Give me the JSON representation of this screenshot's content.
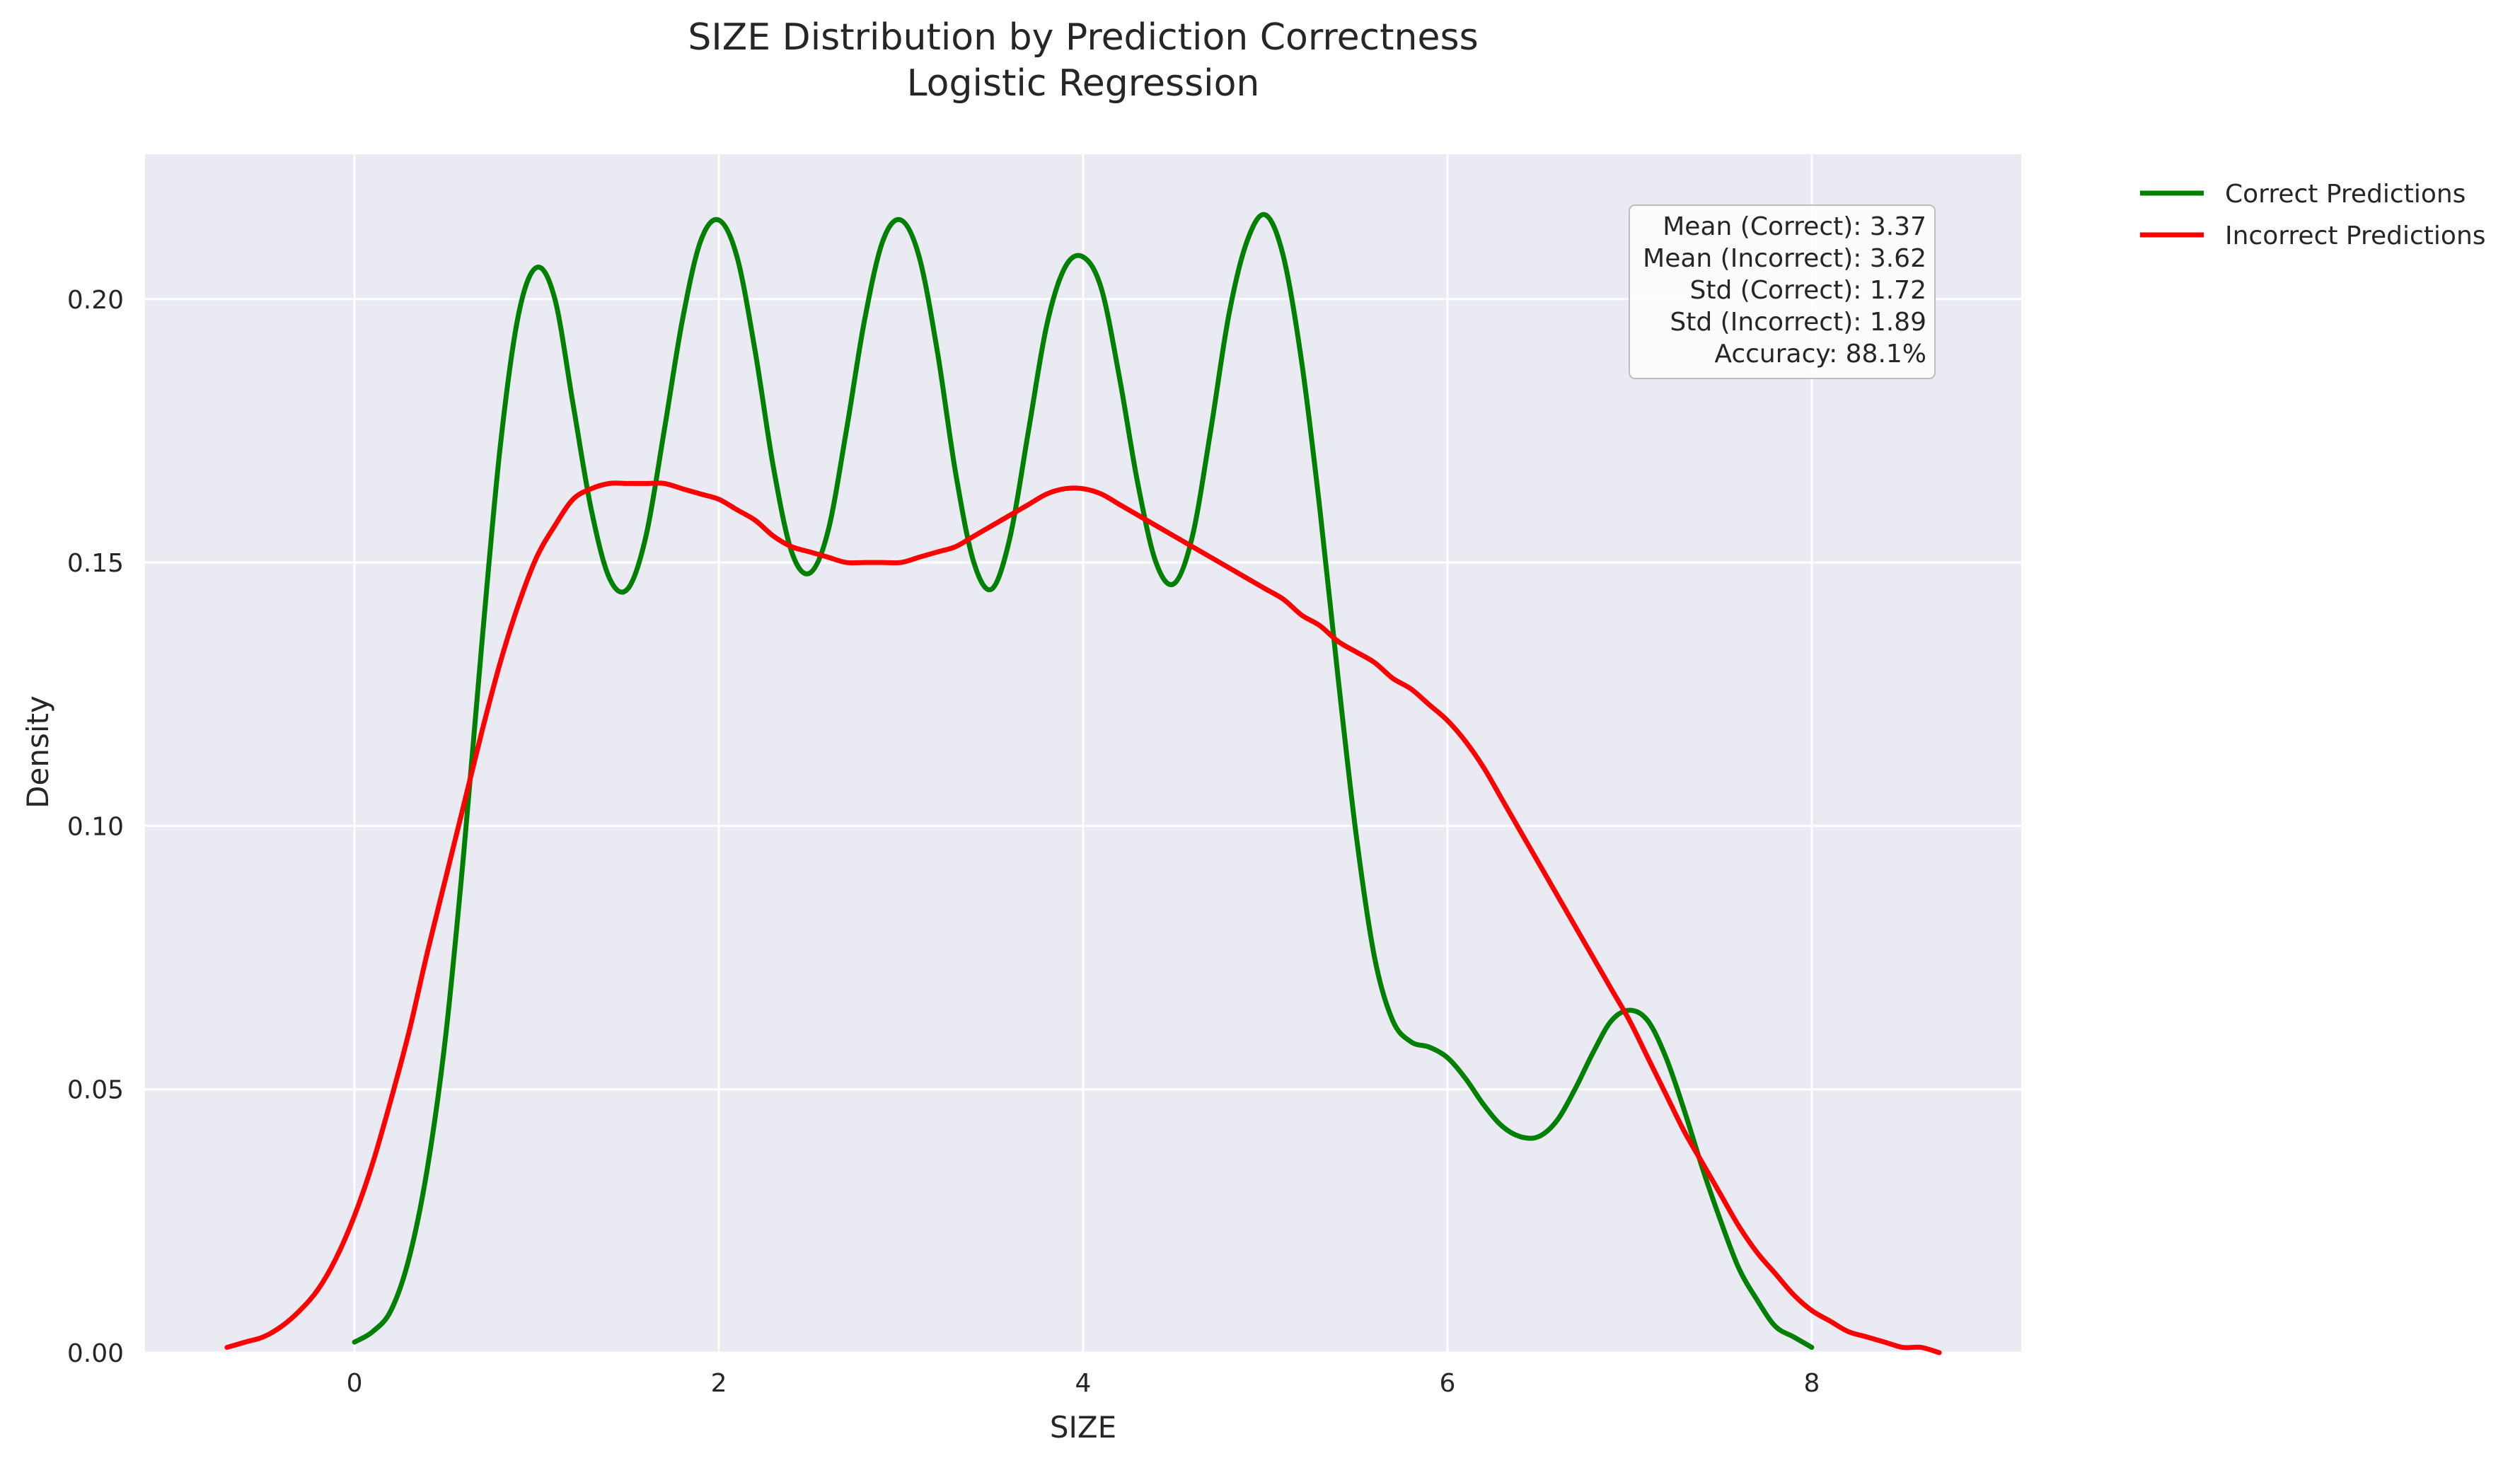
{
  "chart_data": {
    "type": "line",
    "title": "SIZE Distribution by Prediction Correctness",
    "subtitle": "Logistic Regression",
    "xlabel": "SIZE",
    "ylabel": "Density",
    "xlim": [
      -1.15,
      9.15
    ],
    "ylim": [
      0,
      0.2275
    ],
    "x_ticks": [
      0,
      2,
      4,
      6,
      8
    ],
    "x_tick_labels": [
      "0",
      "2",
      "4",
      "6",
      "8"
    ],
    "y_ticks": [
      0.0,
      0.05,
      0.1,
      0.15,
      0.2
    ],
    "y_tick_labels": [
      "0.00",
      "0.05",
      "0.10",
      "0.15",
      "0.20"
    ],
    "grid": true,
    "legend_placement": "outside-top-right",
    "series": [
      {
        "name": "Correct Predictions",
        "color": "#008000",
        "points": [
          [
            0.0,
            0.002
          ],
          [
            0.1,
            0.004
          ],
          [
            0.2,
            0.008
          ],
          [
            0.3,
            0.018
          ],
          [
            0.4,
            0.035
          ],
          [
            0.5,
            0.06
          ],
          [
            0.6,
            0.095
          ],
          [
            0.7,
            0.135
          ],
          [
            0.8,
            0.172
          ],
          [
            0.9,
            0.197
          ],
          [
            1.0,
            0.206
          ],
          [
            1.1,
            0.2
          ],
          [
            1.2,
            0.18
          ],
          [
            1.3,
            0.16
          ],
          [
            1.4,
            0.147
          ],
          [
            1.5,
            0.145
          ],
          [
            1.6,
            0.155
          ],
          [
            1.7,
            0.175
          ],
          [
            1.8,
            0.196
          ],
          [
            1.9,
            0.211
          ],
          [
            2.0,
            0.215
          ],
          [
            2.1,
            0.208
          ],
          [
            2.2,
            0.19
          ],
          [
            2.3,
            0.168
          ],
          [
            2.4,
            0.152
          ],
          [
            2.5,
            0.148
          ],
          [
            2.6,
            0.156
          ],
          [
            2.7,
            0.175
          ],
          [
            2.8,
            0.196
          ],
          [
            2.9,
            0.211
          ],
          [
            3.0,
            0.215
          ],
          [
            3.1,
            0.208
          ],
          [
            3.2,
            0.19
          ],
          [
            3.3,
            0.167
          ],
          [
            3.4,
            0.15
          ],
          [
            3.5,
            0.145
          ],
          [
            3.6,
            0.155
          ],
          [
            3.7,
            0.175
          ],
          [
            3.8,
            0.195
          ],
          [
            3.9,
            0.206
          ],
          [
            4.0,
            0.208
          ],
          [
            4.1,
            0.202
          ],
          [
            4.2,
            0.185
          ],
          [
            4.3,
            0.165
          ],
          [
            4.4,
            0.15
          ],
          [
            4.5,
            0.146
          ],
          [
            4.6,
            0.155
          ],
          [
            4.7,
            0.175
          ],
          [
            4.8,
            0.197
          ],
          [
            4.9,
            0.211
          ],
          [
            5.0,
            0.216
          ],
          [
            5.1,
            0.208
          ],
          [
            5.2,
            0.188
          ],
          [
            5.3,
            0.16
          ],
          [
            5.4,
            0.128
          ],
          [
            5.5,
            0.098
          ],
          [
            5.6,
            0.075
          ],
          [
            5.7,
            0.063
          ],
          [
            5.8,
            0.059
          ],
          [
            5.9,
            0.058
          ],
          [
            6.0,
            0.056
          ],
          [
            6.1,
            0.052
          ],
          [
            6.2,
            0.047
          ],
          [
            6.3,
            0.043
          ],
          [
            6.4,
            0.041
          ],
          [
            6.5,
            0.041
          ],
          [
            6.6,
            0.044
          ],
          [
            6.7,
            0.05
          ],
          [
            6.8,
            0.057
          ],
          [
            6.9,
            0.063
          ],
          [
            7.0,
            0.065
          ],
          [
            7.1,
            0.063
          ],
          [
            7.2,
            0.056
          ],
          [
            7.3,
            0.046
          ],
          [
            7.4,
            0.035
          ],
          [
            7.5,
            0.025
          ],
          [
            7.6,
            0.016
          ],
          [
            7.7,
            0.01
          ],
          [
            7.8,
            0.005
          ],
          [
            7.9,
            0.003
          ],
          [
            8.0,
            0.001
          ]
        ]
      },
      {
        "name": "Incorrect Predictions",
        "color": "#ff0000",
        "points": [
          [
            -0.7,
            0.001
          ],
          [
            -0.6,
            0.002
          ],
          [
            -0.5,
            0.003
          ],
          [
            -0.4,
            0.005
          ],
          [
            -0.3,
            0.008
          ],
          [
            -0.2,
            0.012
          ],
          [
            -0.1,
            0.018
          ],
          [
            0.0,
            0.026
          ],
          [
            0.1,
            0.036
          ],
          [
            0.2,
            0.048
          ],
          [
            0.3,
            0.061
          ],
          [
            0.4,
            0.076
          ],
          [
            0.5,
            0.09
          ],
          [
            0.6,
            0.104
          ],
          [
            0.7,
            0.118
          ],
          [
            0.8,
            0.131
          ],
          [
            0.9,
            0.142
          ],
          [
            1.0,
            0.151
          ],
          [
            1.1,
            0.157
          ],
          [
            1.2,
            0.162
          ],
          [
            1.3,
            0.164
          ],
          [
            1.4,
            0.165
          ],
          [
            1.5,
            0.165
          ],
          [
            1.6,
            0.165
          ],
          [
            1.7,
            0.165
          ],
          [
            1.8,
            0.164
          ],
          [
            1.9,
            0.163
          ],
          [
            2.0,
            0.162
          ],
          [
            2.1,
            0.16
          ],
          [
            2.2,
            0.158
          ],
          [
            2.3,
            0.155
          ],
          [
            2.4,
            0.153
          ],
          [
            2.5,
            0.152
          ],
          [
            2.6,
            0.151
          ],
          [
            2.7,
            0.15
          ],
          [
            2.8,
            0.15
          ],
          [
            2.9,
            0.15
          ],
          [
            3.0,
            0.15
          ],
          [
            3.1,
            0.151
          ],
          [
            3.2,
            0.152
          ],
          [
            3.3,
            0.153
          ],
          [
            3.4,
            0.155
          ],
          [
            3.5,
            0.157
          ],
          [
            3.6,
            0.159
          ],
          [
            3.7,
            0.161
          ],
          [
            3.8,
            0.163
          ],
          [
            3.9,
            0.164
          ],
          [
            4.0,
            0.164
          ],
          [
            4.1,
            0.163
          ],
          [
            4.2,
            0.161
          ],
          [
            4.3,
            0.159
          ],
          [
            4.4,
            0.157
          ],
          [
            4.5,
            0.155
          ],
          [
            4.6,
            0.153
          ],
          [
            4.7,
            0.151
          ],
          [
            4.8,
            0.149
          ],
          [
            4.9,
            0.147
          ],
          [
            5.0,
            0.145
          ],
          [
            5.1,
            0.143
          ],
          [
            5.2,
            0.14
          ],
          [
            5.3,
            0.138
          ],
          [
            5.4,
            0.135
          ],
          [
            5.5,
            0.133
          ],
          [
            5.6,
            0.131
          ],
          [
            5.7,
            0.128
          ],
          [
            5.8,
            0.126
          ],
          [
            5.9,
            0.123
          ],
          [
            6.0,
            0.12
          ],
          [
            6.1,
            0.116
          ],
          [
            6.2,
            0.111
          ],
          [
            6.3,
            0.105
          ],
          [
            6.4,
            0.099
          ],
          [
            6.5,
            0.093
          ],
          [
            6.6,
            0.087
          ],
          [
            6.7,
            0.081
          ],
          [
            6.8,
            0.075
          ],
          [
            6.9,
            0.069
          ],
          [
            7.0,
            0.063
          ],
          [
            7.1,
            0.056
          ],
          [
            7.2,
            0.049
          ],
          [
            7.3,
            0.042
          ],
          [
            7.4,
            0.036
          ],
          [
            7.5,
            0.03
          ],
          [
            7.6,
            0.024
          ],
          [
            7.7,
            0.019
          ],
          [
            7.8,
            0.015
          ],
          [
            7.9,
            0.011
          ],
          [
            8.0,
            0.008
          ],
          [
            8.1,
            0.006
          ],
          [
            8.2,
            0.004
          ],
          [
            8.3,
            0.003
          ],
          [
            8.4,
            0.002
          ],
          [
            8.5,
            0.001
          ],
          [
            8.6,
            0.001
          ],
          [
            8.7,
            0.0
          ]
        ]
      }
    ],
    "stats_box": {
      "lines": [
        "Mean (Correct): 3.37",
        "Mean (Incorrect): 3.62",
        "Std (Correct): 1.72",
        "Std (Incorrect): 1.89",
        "Accuracy: 88.1%"
      ]
    },
    "colors": {
      "plot_background": "#eaeaf2",
      "grid": "#ffffff"
    }
  }
}
